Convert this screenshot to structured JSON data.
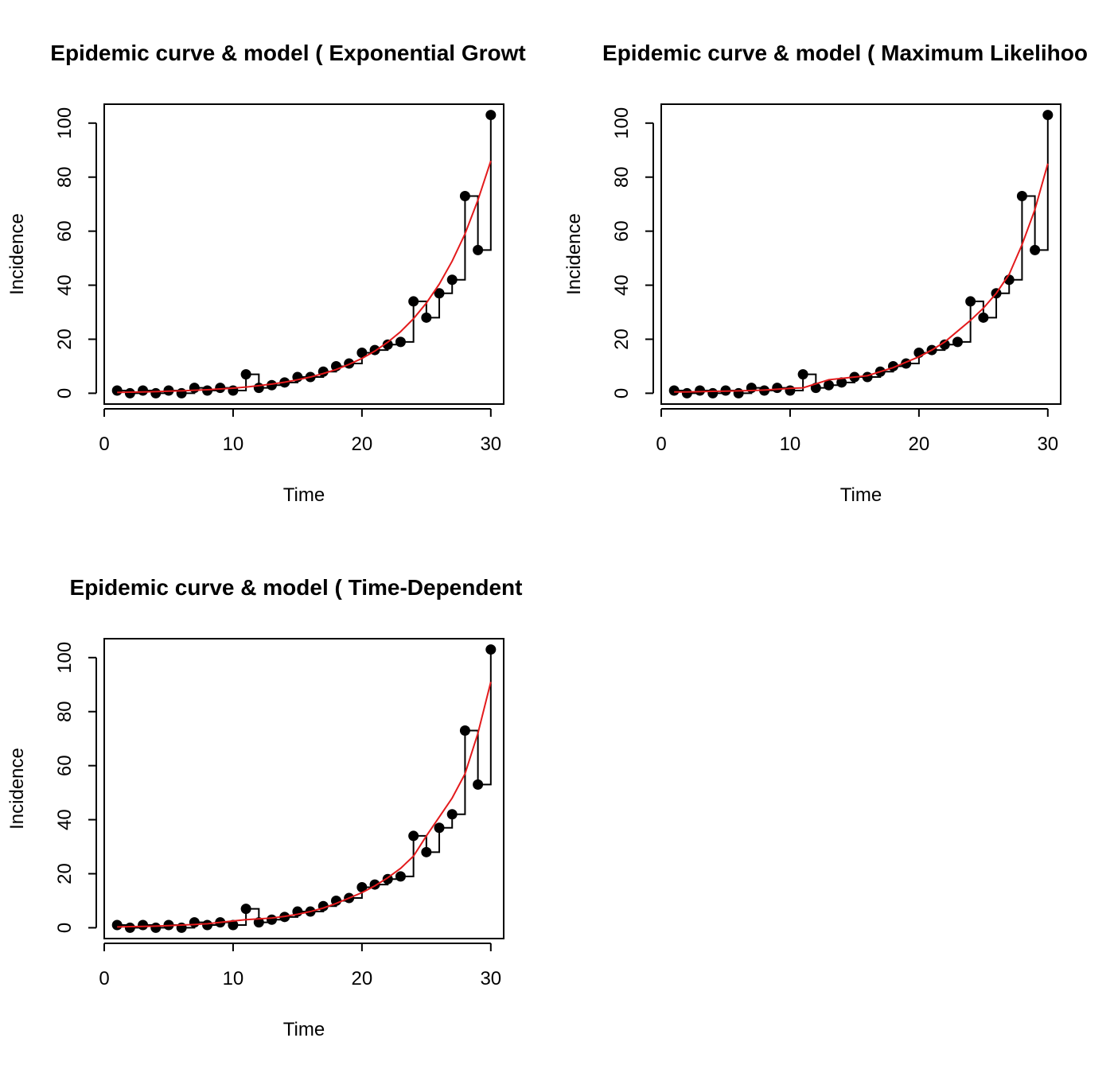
{
  "chart_data": [
    {
      "type": "line",
      "title": "Epidemic curve & model ( Exponential Growt",
      "xlabel": "Time",
      "ylabel": "Incidence",
      "xlim": [
        0,
        31
      ],
      "ylim": [
        -4,
        107
      ],
      "xticks": [
        "0",
        "10",
        "20",
        "30"
      ],
      "yticks": [
        "0",
        "20",
        "40",
        "60",
        "80",
        "100"
      ],
      "grid": false,
      "series": [
        {
          "role": "observed",
          "color": "#000000",
          "style": "points-with-step",
          "x": [
            1,
            2,
            3,
            4,
            5,
            6,
            7,
            8,
            9,
            10,
            11,
            12,
            13,
            14,
            15,
            16,
            17,
            18,
            19,
            20,
            21,
            22,
            23,
            24,
            25,
            26,
            27,
            28,
            29,
            30
          ],
          "values": [
            1,
            0,
            1,
            0,
            1,
            0,
            2,
            1,
            2,
            1,
            7,
            2,
            3,
            4,
            6,
            6,
            8,
            10,
            11,
            15,
            16,
            18,
            19,
            34,
            28,
            37,
            42,
            73,
            53,
            103
          ]
        },
        {
          "role": "model",
          "color": "#e31a1c",
          "style": "line",
          "x": [
            1,
            2,
            3,
            4,
            5,
            6,
            7,
            8,
            9,
            10,
            11,
            12,
            13,
            14,
            15,
            16,
            17,
            18,
            19,
            20,
            21,
            22,
            23,
            24,
            25,
            26,
            27,
            28,
            29,
            30
          ],
          "values": [
            0.3,
            0.4,
            0.5,
            0.6,
            0.8,
            0.9,
            1.1,
            1.3,
            1.6,
            1.9,
            2.3,
            2.8,
            3.4,
            4.1,
            5,
            6,
            7.3,
            8.8,
            10.7,
            12.9,
            15.6,
            18.9,
            22.8,
            27.6,
            33.4,
            40.4,
            48.9,
            59,
            71.5,
            86
          ]
        }
      ]
    },
    {
      "type": "line",
      "title": "Epidemic curve & model ( Maximum Likelihoo",
      "xlabel": "Time",
      "ylabel": "Incidence",
      "xlim": [
        0,
        31
      ],
      "ylim": [
        -4,
        107
      ],
      "xticks": [
        "0",
        "10",
        "20",
        "30"
      ],
      "yticks": [
        "0",
        "20",
        "40",
        "60",
        "80",
        "100"
      ],
      "grid": false,
      "series": [
        {
          "role": "observed",
          "color": "#000000",
          "style": "points-with-step",
          "x": [
            1,
            2,
            3,
            4,
            5,
            6,
            7,
            8,
            9,
            10,
            11,
            12,
            13,
            14,
            15,
            16,
            17,
            18,
            19,
            20,
            21,
            22,
            23,
            24,
            25,
            26,
            27,
            28,
            29,
            30
          ],
          "values": [
            1,
            0,
            1,
            0,
            1,
            0,
            2,
            1,
            2,
            1,
            7,
            2,
            3,
            4,
            6,
            6,
            8,
            10,
            11,
            15,
            16,
            18,
            19,
            34,
            28,
            37,
            42,
            73,
            53,
            103
          ]
        },
        {
          "role": "model",
          "color": "#e31a1c",
          "style": "line",
          "x": [
            1,
            2,
            3,
            4,
            5,
            6,
            7,
            8,
            9,
            10,
            11,
            12,
            13,
            14,
            15,
            16,
            17,
            18,
            19,
            20,
            21,
            22,
            23,
            24,
            25,
            26,
            27,
            28,
            29,
            30
          ],
          "values": [
            0.5,
            0.5,
            0.6,
            0.7,
            0.8,
            0.9,
            1,
            1.2,
            1.5,
            1.8,
            2,
            3.5,
            5,
            5.5,
            6,
            6.5,
            8,
            9.5,
            11.5,
            13.5,
            16,
            19,
            23,
            27,
            31.5,
            37,
            44,
            55,
            68,
            85
          ]
        }
      ]
    },
    {
      "type": "line",
      "title": "Epidemic curve & model ( Time-Dependent",
      "xlabel": "Time",
      "ylabel": "Incidence",
      "xlim": [
        0,
        31
      ],
      "ylim": [
        -4,
        107
      ],
      "xticks": [
        "0",
        "10",
        "20",
        "30"
      ],
      "yticks": [
        "0",
        "20",
        "40",
        "60",
        "80",
        "100"
      ],
      "grid": false,
      "series": [
        {
          "role": "observed",
          "color": "#000000",
          "style": "points-with-step",
          "x": [
            1,
            2,
            3,
            4,
            5,
            6,
            7,
            8,
            9,
            10,
            11,
            12,
            13,
            14,
            15,
            16,
            17,
            18,
            19,
            20,
            21,
            22,
            23,
            24,
            25,
            26,
            27,
            28,
            29,
            30
          ],
          "values": [
            1,
            0,
            1,
            0,
            1,
            0,
            2,
            1,
            2,
            1,
            7,
            2,
            3,
            4,
            6,
            6,
            8,
            10,
            11,
            15,
            16,
            18,
            19,
            34,
            28,
            37,
            42,
            73,
            53,
            103
          ]
        },
        {
          "role": "model",
          "color": "#e31a1c",
          "style": "line",
          "x": [
            1,
            2,
            3,
            4,
            5,
            6,
            7,
            8,
            9,
            10,
            11,
            12,
            13,
            14,
            15,
            16,
            17,
            18,
            19,
            20,
            21,
            22,
            23,
            24,
            25,
            26,
            27,
            28,
            29,
            30
          ],
          "values": [
            0.3,
            0.4,
            0.5,
            0.6,
            0.8,
            1,
            1.2,
            1.5,
            2,
            2.5,
            3,
            3.3,
            3.6,
            4.2,
            5,
            6,
            7.3,
            9,
            11,
            13,
            15.5,
            18.5,
            22,
            26.5,
            34,
            41,
            48,
            57,
            72,
            91
          ]
        }
      ]
    }
  ]
}
